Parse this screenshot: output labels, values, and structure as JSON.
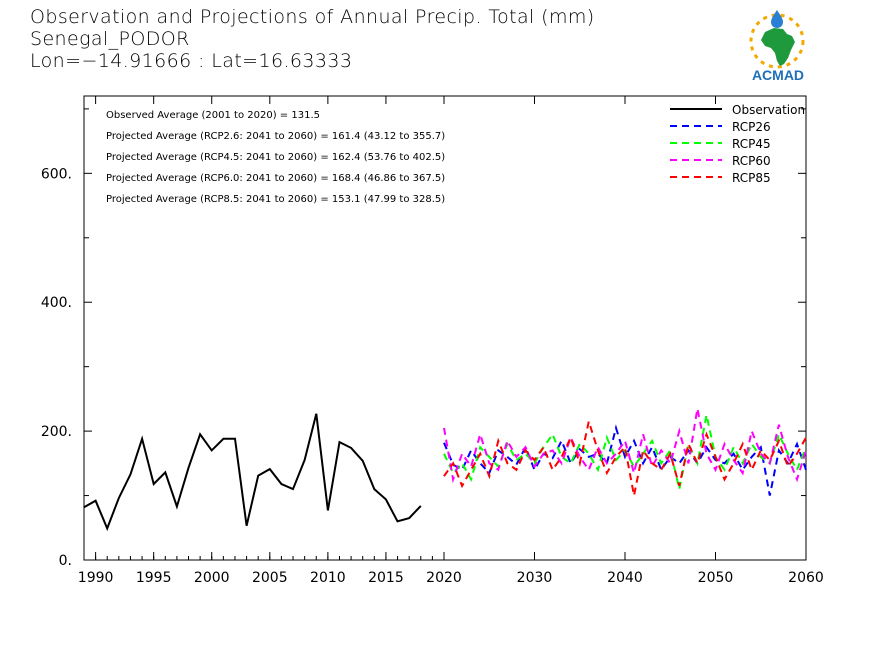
{
  "header": {
    "line1": "Observation and Projections of Annual Precip. Total (mm)",
    "line2": "Senegal_PODOR",
    "line3": "Lon=−14.91666 : Lat=16.63333"
  },
  "logo": {
    "text": "ACMAD",
    "icon": "africa-map-logo"
  },
  "annotations": [
    "Observed Average (2001 to 2020) = 131.5",
    "Projected Average (RCP2.6: 2041 to 2060) = 161.4 (43.12 to 355.7)",
    "Projected Average (RCP4.5: 2041 to 2060) = 162.4 (53.76 to 402.5)",
    "Projected Average (RCP6.0: 2041 to 2060) = 168.4 (46.86 to 367.5)",
    "Projected Average (RCP8.5: 2041 to 2060) = 153.1 (47.99 to 328.5)"
  ],
  "chart_data": {
    "type": "line",
    "title": "Observation and Projections of Annual Precip. Total (mm)",
    "xlim": [
      1989,
      2060
    ],
    "ylim": [
      0,
      720
    ],
    "x_ticks": [
      1990,
      1995,
      2000,
      2005,
      2010,
      2015,
      2020,
      2030,
      2040,
      2050,
      2060
    ],
    "x_tick_labels": [
      "1990",
      "1995",
      "2000",
      "2005",
      "2010",
      "2015",
      "2020",
      "2030",
      "2040",
      "2050",
      "2060"
    ],
    "y_ticks": [
      0,
      200,
      400,
      600
    ],
    "y_tick_labels": [
      "0.",
      "200.",
      "400.",
      "600."
    ],
    "legend_position": "top-right",
    "series": [
      {
        "name": "Observation",
        "color": "#000000",
        "style": "solid",
        "x": [
          1989,
          1990,
          1991,
          1992,
          1993,
          1994,
          1995,
          1996,
          1997,
          1998,
          1999,
          2000,
          2001,
          2002,
          2003,
          2004,
          2005,
          2006,
          2007,
          2008,
          2009,
          2010,
          2011,
          2012,
          2013,
          2014,
          2015,
          2016,
          2017,
          2018,
          2019,
          2020
        ],
        "values": [
          82,
          92,
          49,
          96,
          133,
          188,
          118,
          136,
          83,
          143,
          195,
          170,
          188,
          188,
          53,
          131,
          141,
          118,
          110,
          155,
          227,
          77,
          183,
          174,
          154,
          110,
          94,
          60,
          65,
          84,
          null,
          null
        ]
      },
      {
        "name": "RCP26",
        "color": "#0000ff",
        "style": "dashed",
        "x": [
          2020,
          2021,
          2022,
          2023,
          2024,
          2025,
          2026,
          2027,
          2028,
          2029,
          2030,
          2031,
          2032,
          2033,
          2034,
          2035,
          2036,
          2037,
          2038,
          2039,
          2040,
          2041,
          2042,
          2043,
          2044,
          2045,
          2046,
          2047,
          2048,
          2049,
          2050,
          2051,
          2052,
          2053,
          2054,
          2055,
          2056,
          2057,
          2058,
          2059,
          2060
        ],
        "values": [
          182,
          148,
          140,
          170,
          150,
          135,
          170,
          160,
          148,
          175,
          140,
          165,
          158,
          185,
          150,
          172,
          160,
          165,
          150,
          205,
          160,
          185,
          150,
          175,
          140,
          160,
          150,
          170,
          150,
          175,
          155,
          150,
          165,
          140,
          160,
          175,
          100,
          170,
          150,
          180,
          140
        ]
      },
      {
        "name": "RCP45",
        "color": "#00ff00",
        "style": "dashed",
        "x": [
          2020,
          2021,
          2022,
          2023,
          2024,
          2025,
          2026,
          2027,
          2028,
          2029,
          2030,
          2031,
          2032,
          2033,
          2034,
          2035,
          2036,
          2037,
          2038,
          2039,
          2040,
          2041,
          2042,
          2043,
          2044,
          2045,
          2046,
          2047,
          2048,
          2049,
          2050,
          2051,
          2052,
          2053,
          2054,
          2055,
          2056,
          2057,
          2058,
          2059,
          2060
        ],
        "values": [
          165,
          135,
          150,
          125,
          175,
          160,
          145,
          180,
          155,
          165,
          150,
          175,
          195,
          160,
          150,
          180,
          165,
          140,
          190,
          155,
          170,
          145,
          165,
          185,
          150,
          170,
          110,
          180,
          150,
          225,
          160,
          140,
          175,
          150,
          180,
          160,
          150,
          195,
          165,
          140,
          175
        ]
      },
      {
        "name": "RCP60",
        "color": "#ff00ff",
        "style": "dashed",
        "x": [
          2020,
          2021,
          2022,
          2023,
          2024,
          2025,
          2026,
          2027,
          2028,
          2029,
          2030,
          2031,
          2032,
          2033,
          2034,
          2035,
          2036,
          2037,
          2038,
          2039,
          2040,
          2041,
          2042,
          2043,
          2044,
          2045,
          2046,
          2047,
          2048,
          2049,
          2050,
          2051,
          2052,
          2053,
          2054,
          2055,
          2056,
          2057,
          2058,
          2059,
          2060
        ],
        "values": [
          205,
          125,
          165,
          145,
          195,
          150,
          140,
          185,
          160,
          175,
          145,
          165,
          170,
          150,
          190,
          160,
          140,
          175,
          150,
          165,
          185,
          135,
          195,
          145,
          170,
          150,
          200,
          150,
          235,
          165,
          140,
          180,
          155,
          135,
          200,
          165,
          150,
          210,
          160,
          125,
          170
        ]
      },
      {
        "name": "RCP85",
        "color": "#ff0000",
        "style": "dashed",
        "x": [
          2020,
          2021,
          2022,
          2023,
          2024,
          2025,
          2026,
          2027,
          2028,
          2029,
          2030,
          2031,
          2032,
          2033,
          2034,
          2035,
          2036,
          2037,
          2038,
          2039,
          2040,
          2041,
          2042,
          2043,
          2044,
          2045,
          2046,
          2047,
          2048,
          2049,
          2050,
          2051,
          2052,
          2053,
          2054,
          2055,
          2056,
          2057,
          2058,
          2059,
          2060
        ],
        "values": [
          130,
          150,
          115,
          140,
          165,
          130,
          185,
          150,
          140,
          170,
          155,
          175,
          140,
          160,
          190,
          150,
          215,
          170,
          135,
          160,
          175,
          100,
          170,
          150,
          140,
          165,
          115,
          180,
          150,
          195,
          160,
          125,
          150,
          180,
          140,
          170,
          155,
          185,
          145,
          165,
          190
        ]
      }
    ]
  }
}
